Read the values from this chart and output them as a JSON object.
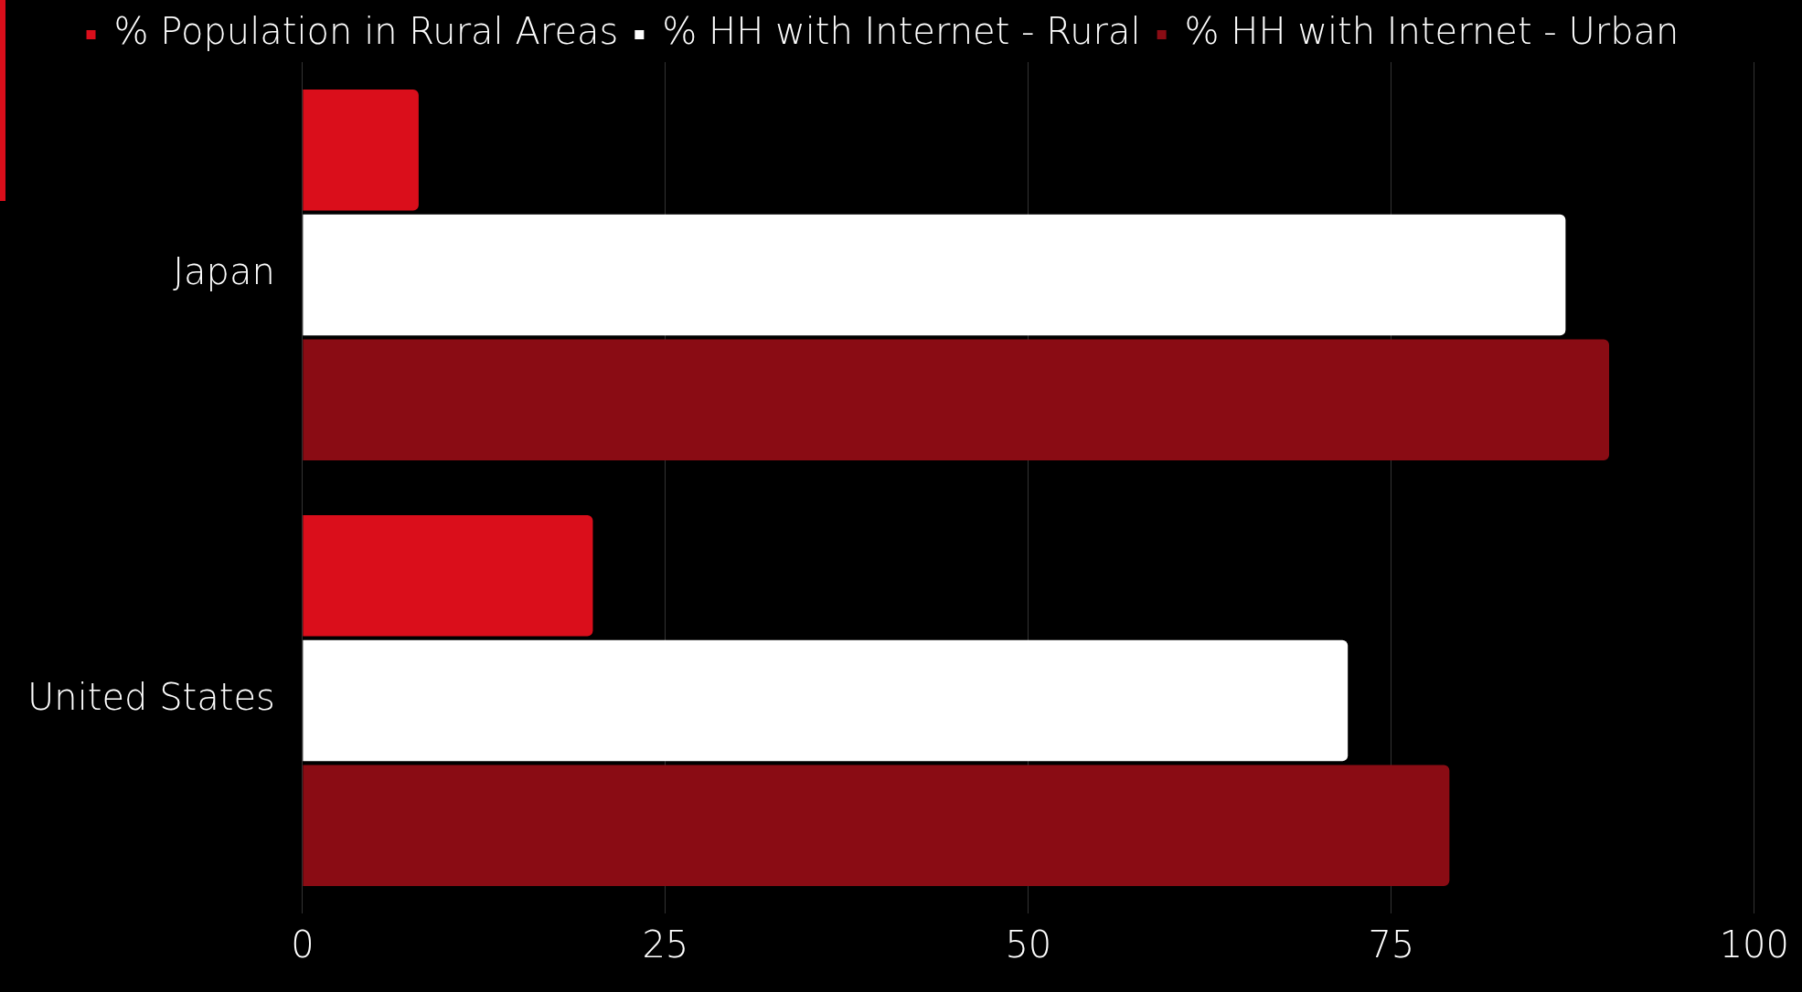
{
  "chart_data": {
    "type": "bar",
    "orientation": "horizontal",
    "categories": [
      "Japan",
      "United States"
    ],
    "series": [
      {
        "name": "% Population in Rural Areas",
        "color": "#da0e1b",
        "values": [
          8,
          20
        ]
      },
      {
        "name": "% HH with Internet - Rural",
        "color": "#ffffff",
        "values": [
          87,
          72
        ]
      },
      {
        "name": "% HH with Internet - Urban",
        "color": "#8a0c14",
        "values": [
          90,
          79
        ]
      }
    ],
    "xlim": [
      0,
      100
    ],
    "xticks": [
      0,
      25,
      50,
      75,
      100
    ],
    "grid": "x",
    "legend": "top"
  }
}
